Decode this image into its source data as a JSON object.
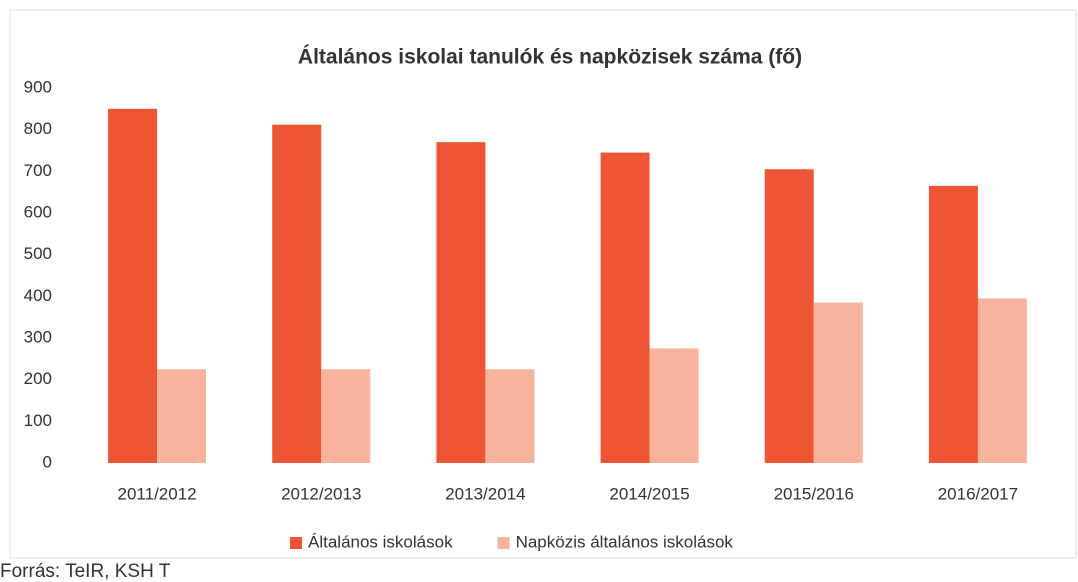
{
  "chart_data": {
    "type": "bar",
    "title": "Általános iskolai tanulók és napközisek száma (fő)",
    "categories": [
      "2011/2012",
      "2012/2013",
      "2013/2014",
      "2014/2015",
      "2015/2016",
      "2016/2017"
    ],
    "series": [
      {
        "name": "Általános iskolások",
        "color": "#ee5535",
        "values": [
          850,
          812,
          770,
          745,
          705,
          665
        ]
      },
      {
        "name": "Napközis általános iskolások",
        "color": "#f8b39d",
        "values": [
          225,
          225,
          225,
          275,
          385,
          395
        ]
      }
    ],
    "ylim": [
      0,
      900
    ],
    "yticks": [
      0,
      100,
      200,
      300,
      400,
      500,
      600,
      700,
      800,
      900
    ],
    "grid": false,
    "legend": "bottom",
    "source": "Forrás: TeIR, KSH T"
  }
}
